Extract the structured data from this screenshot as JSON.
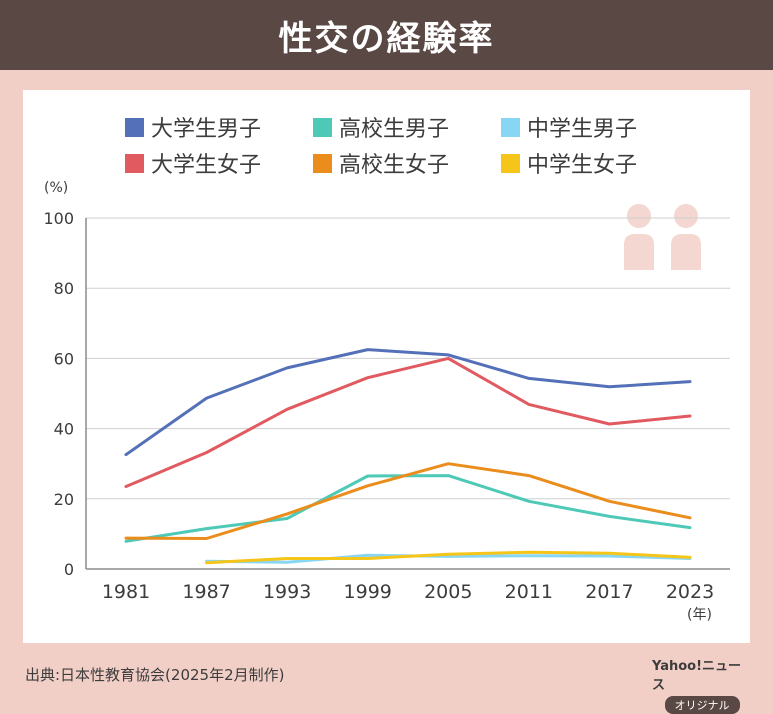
{
  "header": {
    "title": "性交の経験率"
  },
  "unit": "(%)",
  "year_unit": "(年)",
  "source": "出典:日本性教育協会(2025年2月制作)",
  "brand": {
    "name": "Yahoo!ニュース",
    "badge": "オリジナル"
  },
  "colors": {
    "header_bg": "#5a4844",
    "page_bg": "#f1cfc7",
    "icon": "#f3d7d0"
  },
  "icons": [
    "person-icon",
    "person-icon"
  ],
  "chart_data": {
    "type": "line",
    "title": "性交の経験率",
    "x": [
      1981,
      1987,
      1993,
      1999,
      2005,
      2011,
      2017,
      2023
    ],
    "x_tick_labels": [
      "1981",
      "1987",
      "1993",
      "1999",
      "2005",
      "2011",
      "2017",
      "2023"
    ],
    "y_ticks": [
      0,
      20,
      40,
      60,
      80,
      100
    ],
    "ylim": [
      0,
      100
    ],
    "ylabel": "(%)",
    "xlabel": "(年)",
    "grid": true,
    "legend_position": "top",
    "series": [
      {
        "name": "大学生男子",
        "color": "#5470b8",
        "values": [
          32.6,
          48.7,
          57.3,
          62.5,
          61.0,
          54.3,
          51.9,
          53.4
        ]
      },
      {
        "name": "高校生男子",
        "color": "#4ec9b7",
        "values": [
          7.9,
          11.5,
          14.4,
          26.5,
          26.6,
          19.3,
          15.0,
          11.8
        ]
      },
      {
        "name": "中学生男子",
        "color": "#87d6f3",
        "values": [
          null,
          2.2,
          1.9,
          3.9,
          3.6,
          3.8,
          3.7,
          3.0
        ]
      },
      {
        "name": "大学生女子",
        "color": "#e05a60",
        "values": [
          23.5,
          33.2,
          45.5,
          54.5,
          60.0,
          46.9,
          41.3,
          43.6
        ]
      },
      {
        "name": "高校生女子",
        "color": "#ea8d1d",
        "values": [
          8.8,
          8.7,
          15.7,
          23.7,
          30.0,
          26.6,
          19.3,
          14.6
        ]
      },
      {
        "name": "中学生女子",
        "color": "#f5c519",
        "values": [
          null,
          1.8,
          3.0,
          3.0,
          4.2,
          4.8,
          4.5,
          3.3
        ]
      }
    ]
  }
}
